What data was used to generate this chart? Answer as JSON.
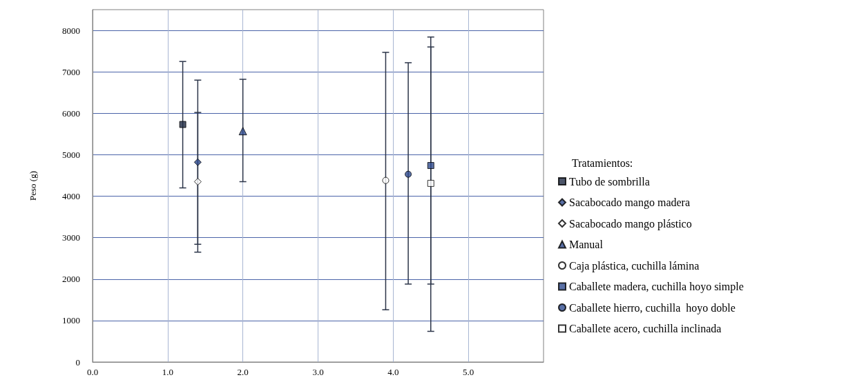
{
  "chart_data": {
    "type": "scatter",
    "ylabel": "Peso (g)",
    "legend_title": "Tratamientos:",
    "xlim": [
      0,
      6
    ],
    "xticks": [
      {
        "value": 0,
        "label": "0.0"
      },
      {
        "value": 1,
        "label": "1.0"
      },
      {
        "value": 2,
        "label": "2.0"
      },
      {
        "value": 3,
        "label": "3.0"
      },
      {
        "value": 4,
        "label": "4.0"
      },
      {
        "value": 5,
        "label": "5.0"
      }
    ],
    "ylim": [
      0,
      8500
    ],
    "yticks": [
      0,
      1000,
      2000,
      3000,
      4000,
      5000,
      6000,
      7000,
      8000
    ],
    "grid": true,
    "legend": "right",
    "series": [
      {
        "name": "Tubo de sombrilla",
        "marker": "square",
        "color": "#1f2a44",
        "x": [
          1.2
        ],
        "values": [
          5730
        ],
        "errors": [
          [
            4200,
            7250
          ]
        ]
      },
      {
        "name": "Sacabocado mango madera",
        "marker": "diamond",
        "color": "#2f4b8f",
        "x": [
          1.4
        ],
        "values": [
          4820
        ],
        "errors": [
          [
            2840,
            6800
          ]
        ]
      },
      {
        "name": "Sacabocado mango plástico",
        "marker": "diamond",
        "color": "#ffffff",
        "x": [
          1.4
        ],
        "values": [
          4350
        ],
        "errors": [
          [
            2650,
            6020
          ]
        ]
      },
      {
        "name": "Manual",
        "marker": "triangle",
        "color": "#2f4b8f",
        "x": [
          2.0
        ],
        "values": [
          5570
        ],
        "errors": [
          [
            4350,
            6820
          ]
        ]
      },
      {
        "name": "Caja plástica, cuchilla lámina",
        "marker": "circle",
        "color": "#ffffff",
        "x": [
          3.9
        ],
        "values": [
          4380
        ],
        "errors": [
          [
            1260,
            7470
          ]
        ]
      },
      {
        "name": "Caballete madera, cuchilla hoyo simple",
        "marker": "square",
        "color": "#2f4b8f",
        "x": [
          4.5
        ],
        "values": [
          4740
        ],
        "errors": [
          [
            1880,
            7600
          ]
        ]
      },
      {
        "name": "Caballete hierro, cuchilla  hoyo doble",
        "marker": "circle",
        "color": "#2f4b8f",
        "x": [
          4.2
        ],
        "values": [
          4530
        ],
        "errors": [
          [
            1880,
            7220
          ]
        ]
      },
      {
        "name": "Caballete acero, cuchilla inclinada",
        "marker": "square",
        "color": "#ffffff",
        "x": [
          4.5
        ],
        "values": [
          4310
        ],
        "errors": [
          [
            740,
            7840
          ]
        ]
      }
    ]
  }
}
